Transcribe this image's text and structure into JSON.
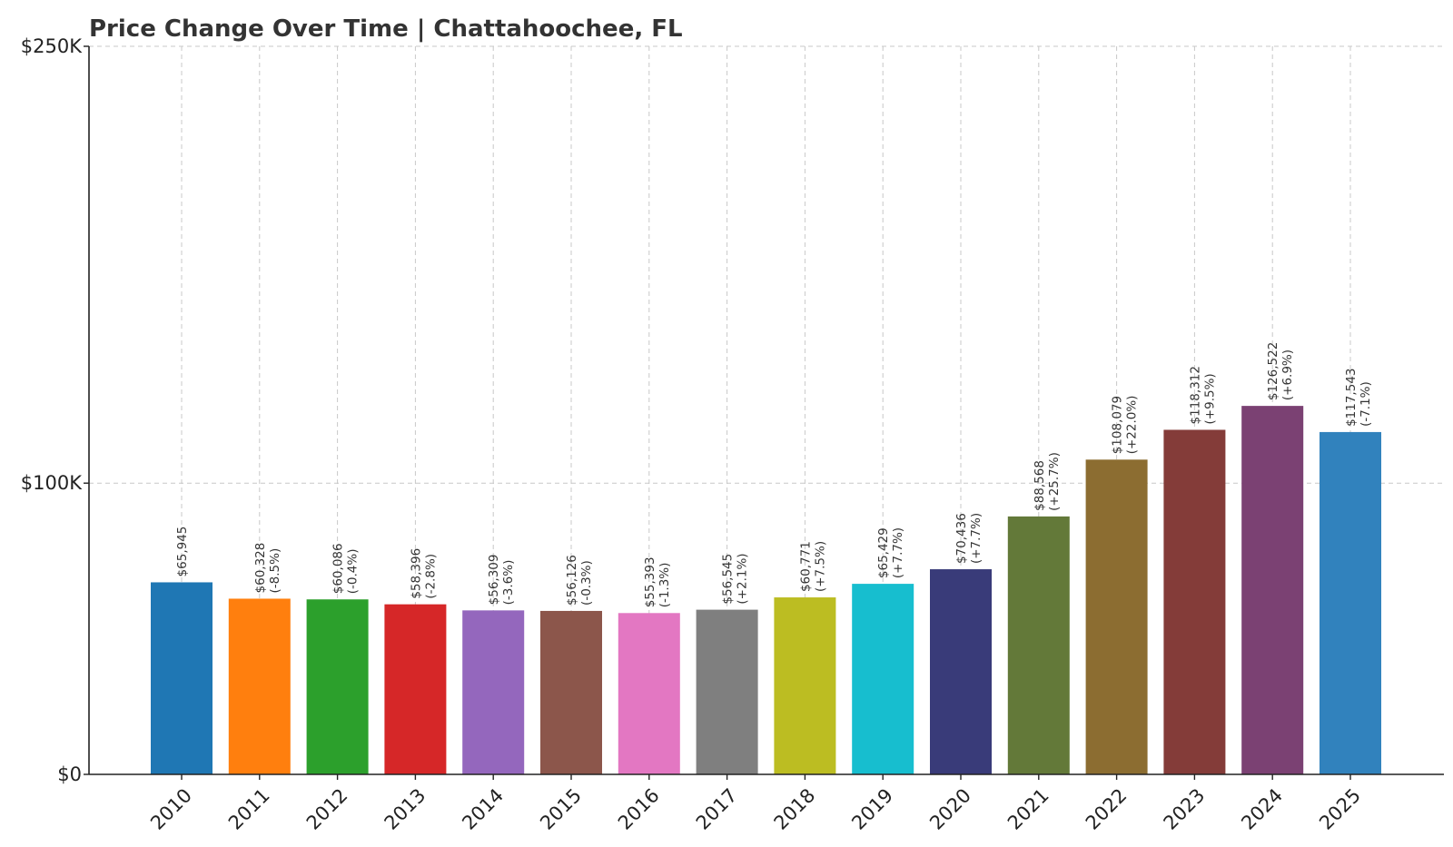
{
  "chart_data": {
    "type": "bar",
    "title": "Price Change Over Time | Chattahoochee, FL",
    "xlabel": "",
    "ylabel": "",
    "ylim": [
      0,
      250000
    ],
    "yticks": [
      {
        "value": 0,
        "label": "$0"
      },
      {
        "value": 100000,
        "label": "$100K"
      },
      {
        "value": 250000,
        "label": "$250K"
      }
    ],
    "grid": true,
    "legend": "none",
    "categories": [
      "2010",
      "2011",
      "2012",
      "2013",
      "2014",
      "2015",
      "2016",
      "2017",
      "2018",
      "2019",
      "2020",
      "2021",
      "2022",
      "2023",
      "2024",
      "2025"
    ],
    "values": [
      65945,
      60328,
      60086,
      58396,
      56309,
      56126,
      55393,
      56545,
      60771,
      65429,
      70436,
      88568,
      108079,
      118312,
      126522,
      117543
    ],
    "value_labels": [
      "$65,945",
      "$60,328",
      "$60,086",
      "$58,396",
      "$56,309",
      "$56,126",
      "$55,393",
      "$56,545",
      "$60,771",
      "$65,429",
      "$70,436",
      "$88,568",
      "$108,079",
      "$118,312",
      "$126,522",
      "$117,543"
    ],
    "change_labels": [
      "",
      "(-8.5%)",
      "(-0.4%)",
      "(-2.8%)",
      "(-3.6%)",
      "(-0.3%)",
      "(-1.3%)",
      "(+2.1%)",
      "(+7.5%)",
      "(+7.7%)",
      "(+7.7%)",
      "(+25.7%)",
      "(+22.0%)",
      "(+9.5%)",
      "(+6.9%)",
      "(-7.1%)"
    ],
    "colors": [
      "#1f77b4",
      "#ff7f0e",
      "#2ca02c",
      "#d62728",
      "#9467bd",
      "#8c564b",
      "#e377c2",
      "#7f7f7f",
      "#bcbd22",
      "#17becf",
      "#393b79",
      "#637939",
      "#8c6d31",
      "#843c39",
      "#7b4173",
      "#3182bd"
    ]
  }
}
